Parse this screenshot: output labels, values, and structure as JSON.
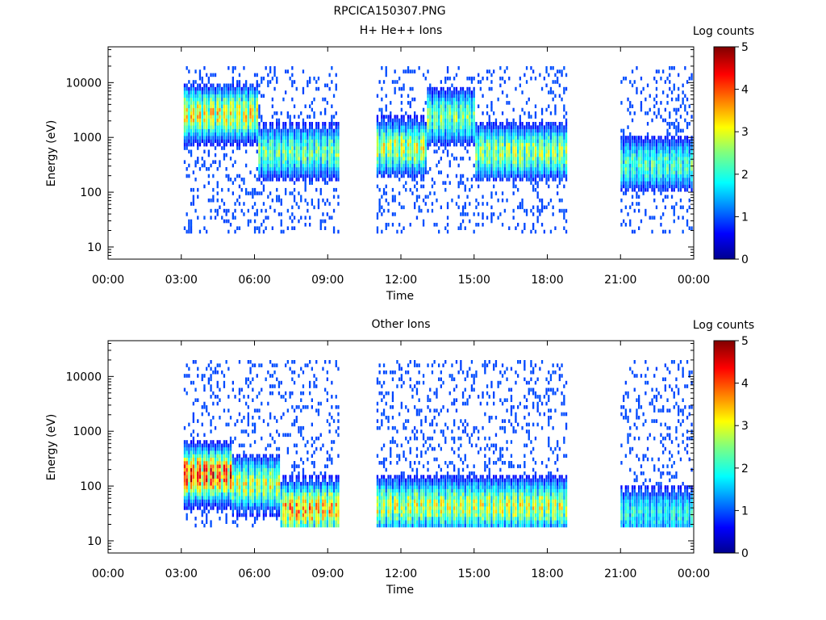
{
  "figure": {
    "filename": "RPCICA150307.PNG"
  },
  "chart_data": [
    {
      "type": "heatmap",
      "title": "H+ He++ Ions",
      "xlabel": "Time",
      "ylabel": "Energy (eV)",
      "x_ticks": [
        "00:00",
        "03:00",
        "06:00",
        "09:00",
        "12:00",
        "15:00",
        "18:00",
        "21:00",
        "00:00"
      ],
      "xlim_hours": [
        0,
        24
      ],
      "y_ticks": [
        "10",
        "100",
        "1000",
        "10000"
      ],
      "y_tick_values": [
        10,
        100,
        1000,
        10000
      ],
      "ylim": [
        6,
        45000
      ],
      "y_scale": "log",
      "colorbar": {
        "label": "Log counts",
        "ticks": [
          "0",
          "1",
          "2",
          "3",
          "4",
          "5"
        ],
        "range": [
          0,
          5
        ],
        "colormap": "rainbow"
      },
      "data_segments_hours": [
        [
          3.1,
          9.4
        ],
        [
          11.0,
          18.8
        ],
        [
          21.0,
          23.9
        ]
      ],
      "dominant_energy_ev": [
        {
          "hours": [
            3.1,
            6.1
          ],
          "energy": 2500,
          "log_counts": 3.2
        },
        {
          "hours": [
            6.1,
            9.4
          ],
          "energy": 500,
          "log_counts": 2.5
        },
        {
          "hours": [
            11.0,
            13.0
          ],
          "energy": 600,
          "log_counts": 3.0
        },
        {
          "hours": [
            13.0,
            15.0
          ],
          "energy": 2200,
          "log_counts": 2.6
        },
        {
          "hours": [
            15.0,
            18.8
          ],
          "energy": 500,
          "log_counts": 2.8
        },
        {
          "hours": [
            21.0,
            23.9
          ],
          "energy": 300,
          "log_counts": 2.3
        }
      ]
    },
    {
      "type": "heatmap",
      "title": "Other Ions",
      "xlabel": "Time",
      "ylabel": "Energy (eV)",
      "x_ticks": [
        "00:00",
        "03:00",
        "06:00",
        "09:00",
        "12:00",
        "15:00",
        "18:00",
        "21:00",
        "00:00"
      ],
      "xlim_hours": [
        0,
        24
      ],
      "y_ticks": [
        "10",
        "100",
        "1000",
        "10000"
      ],
      "y_tick_values": [
        10,
        100,
        1000,
        10000
      ],
      "ylim": [
        6,
        45000
      ],
      "y_scale": "log",
      "colorbar": {
        "label": "Log counts",
        "ticks": [
          "0",
          "1",
          "2",
          "3",
          "4",
          "5"
        ],
        "range": [
          0,
          5
        ],
        "colormap": "rainbow"
      },
      "data_segments_hours": [
        [
          3.1,
          9.4
        ],
        [
          11.0,
          18.8
        ],
        [
          21.0,
          23.9
        ]
      ],
      "dominant_energy_ev": [
        {
          "hours": [
            3.1,
            5.0
          ],
          "energy": 150,
          "log_counts": 4.2
        },
        {
          "hours": [
            5.0,
            7.0
          ],
          "energy": 100,
          "log_counts": 3.0
        },
        {
          "hours": [
            7.0,
            9.4
          ],
          "energy": 35,
          "log_counts": 3.6
        },
        {
          "hours": [
            11.0,
            18.8
          ],
          "energy": 40,
          "log_counts": 3.0
        },
        {
          "hours": [
            21.0,
            23.9
          ],
          "energy": 30,
          "log_counts": 2.0
        }
      ]
    }
  ]
}
